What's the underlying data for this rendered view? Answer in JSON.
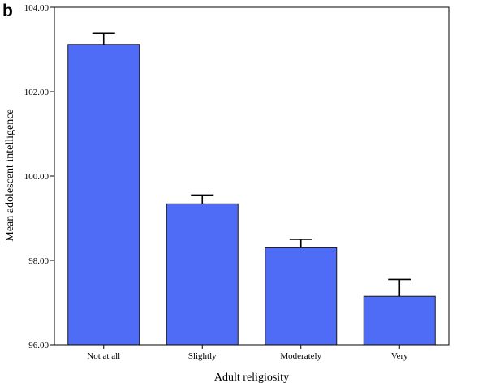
{
  "figure": {
    "panel_label": "b"
  },
  "chart_data": {
    "type": "bar",
    "categories": [
      "Not at all",
      "Slightly",
      "Moderately",
      "Very"
    ],
    "values": [
      103.12,
      99.34,
      98.3,
      97.15
    ],
    "error_upper": [
      103.38,
      99.55,
      98.5,
      97.55
    ],
    "xlabel": "Adult religiosity",
    "ylabel": "Mean adolescent intelligence",
    "ylim": [
      96.0,
      104.0
    ],
    "yticks": [
      96.0,
      98.0,
      100.0,
      102.0,
      104.0
    ],
    "ytick_labels": [
      "96.00",
      "98.00",
      "100.00",
      "102.00",
      "104.00"
    ],
    "grid": false,
    "bar_color": "#4f6cf6"
  }
}
